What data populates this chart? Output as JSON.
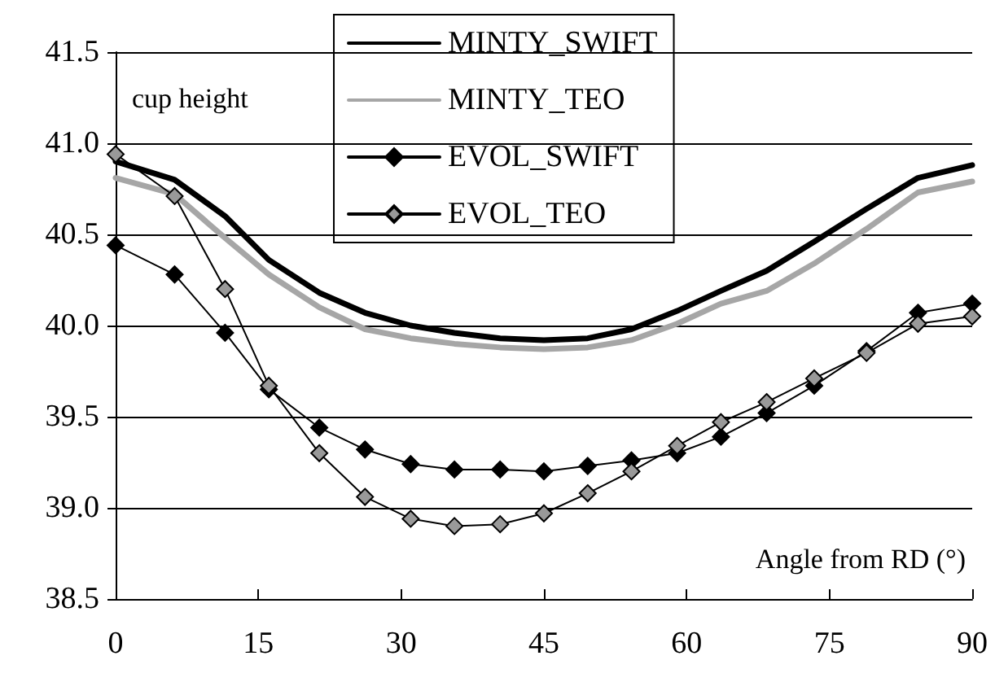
{
  "chart_data": {
    "type": "line",
    "xlabel": "Angle from RD (°)",
    "annotations": [
      "cup height"
    ],
    "x": [
      0,
      6.2,
      11.5,
      16.1,
      21.4,
      26.2,
      31,
      35.6,
      40.4,
      45,
      49.6,
      54.2,
      59,
      63.6,
      68.4,
      73.4,
      78.9,
      84.3,
      90
    ],
    "xlim": [
      0,
      90
    ],
    "xticks": [
      0,
      15,
      30,
      45,
      60,
      75,
      90
    ],
    "ylim": [
      38.5,
      41.5
    ],
    "yticks": [
      {
        "value": 38.5,
        "label": "38.5"
      },
      {
        "value": 39,
        "label": "39.0"
      },
      {
        "value": 39.5,
        "label": "39.5"
      },
      {
        "value": 40,
        "label": "40.0"
      },
      {
        "value": 40.5,
        "label": "40.5"
      },
      {
        "value": 41,
        "label": "41.0"
      },
      {
        "value": 41.5,
        "label": "41.5"
      }
    ],
    "grid": "y",
    "legend": "top",
    "line_style": "solid",
    "series": [
      {
        "name": "MINTY_SWIFT",
        "color": "#000000",
        "marker": "none",
        "values": [
          40.9,
          40.8,
          40.6,
          40.36,
          40.18,
          40.07,
          40.0,
          39.96,
          39.93,
          39.92,
          39.93,
          39.98,
          40.08,
          40.19,
          40.3,
          40.46,
          40.64,
          40.81,
          40.88
        ]
      },
      {
        "name": "MINTY_TEO",
        "color": "#a6a6a6",
        "marker": "none",
        "values": [
          40.81,
          40.72,
          40.48,
          40.28,
          40.1,
          39.98,
          39.93,
          39.9,
          39.88,
          39.87,
          39.88,
          39.92,
          40.01,
          40.12,
          40.19,
          40.34,
          40.53,
          40.73,
          40.79
        ]
      },
      {
        "name": "EVOL_SWIFT",
        "color": "#000000",
        "marker": "diamond",
        "values": [
          40.44,
          40.28,
          39.96,
          39.65,
          39.44,
          39.32,
          39.24,
          39.21,
          39.21,
          39.2,
          39.23,
          39.26,
          39.3,
          39.39,
          39.52,
          39.67,
          39.86,
          40.07,
          40.12
        ]
      },
      {
        "name": "EVOL_TEO",
        "color": "#999999",
        "marker": "diamond",
        "values": [
          40.94,
          40.71,
          40.2,
          39.67,
          39.3,
          39.06,
          38.94,
          38.9,
          38.91,
          38.97,
          39.08,
          39.2,
          39.34,
          39.47,
          39.58,
          39.71,
          39.85,
          40.01,
          40.05
        ]
      }
    ]
  }
}
